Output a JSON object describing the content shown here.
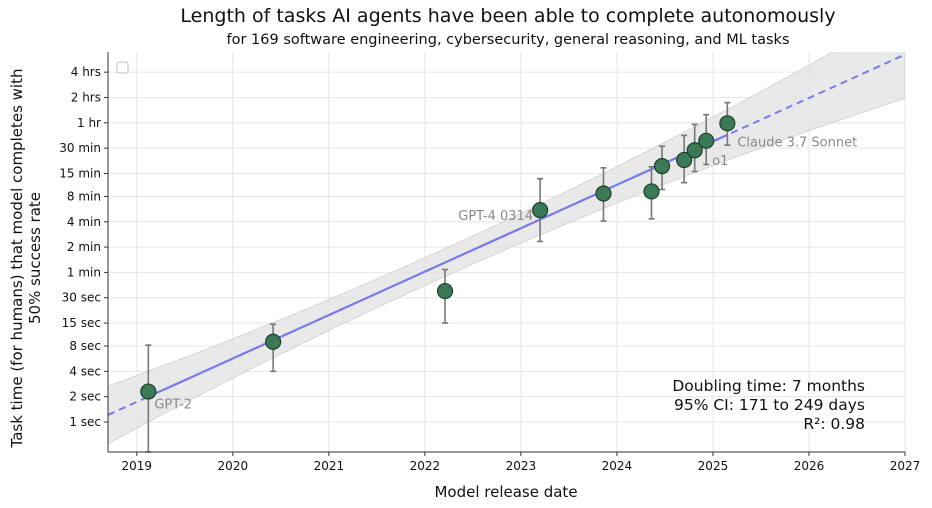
{
  "chart_data": {
    "type": "scatter",
    "title": "Length of tasks AI agents have been able to complete autonomously",
    "subtitle": "for 169 software engineering, cybersecurity, general reasoning, and ML tasks",
    "xlabel": "Model release date",
    "ylabel_line1": "Task time (for humans) that model completes with",
    "ylabel_line2": "50% success rate",
    "y_scale": "log2",
    "y_unit": "seconds",
    "x_unit": "year",
    "xlim": [
      2018.7,
      2027.0
    ],
    "ylim": [
      0.44,
      25000
    ],
    "grid": true,
    "legend": "empty-top-left",
    "x_ticks": [
      {
        "value": 2019,
        "label": "2019"
      },
      {
        "value": 2020,
        "label": "2020"
      },
      {
        "value": 2021,
        "label": "2021"
      },
      {
        "value": 2022,
        "label": "2022"
      },
      {
        "value": 2023,
        "label": "2023"
      },
      {
        "value": 2024,
        "label": "2024"
      },
      {
        "value": 2025,
        "label": "2025"
      },
      {
        "value": 2026,
        "label": "2026"
      },
      {
        "value": 2027,
        "label": "2027"
      }
    ],
    "y_ticks": [
      {
        "value": 1,
        "label": "1 sec"
      },
      {
        "value": 2,
        "label": "2 sec"
      },
      {
        "value": 4,
        "label": "4 sec"
      },
      {
        "value": 8,
        "label": "8 sec"
      },
      {
        "value": 15,
        "label": "15 sec"
      },
      {
        "value": 30,
        "label": "30 sec"
      },
      {
        "value": 60,
        "label": "1 min"
      },
      {
        "value": 120,
        "label": "2 min"
      },
      {
        "value": 240,
        "label": "4 min"
      },
      {
        "value": 480,
        "label": "8 min"
      },
      {
        "value": 900,
        "label": "15 min"
      },
      {
        "value": 1800,
        "label": "30 min"
      },
      {
        "value": 3600,
        "label": "1 hr"
      },
      {
        "value": 7200,
        "label": "2 hrs"
      },
      {
        "value": 14400,
        "label": "4 hrs"
      }
    ],
    "points": [
      {
        "x": 2019.12,
        "y": 2.3,
        "lo": 0.44,
        "hi": 8.2,
        "label": "GPT-2"
      },
      {
        "x": 2020.42,
        "y": 9,
        "lo": 4,
        "hi": 14.5,
        "label": ""
      },
      {
        "x": 2022.21,
        "y": 36,
        "lo": 15,
        "hi": 65,
        "label": ""
      },
      {
        "x": 2023.2,
        "y": 330,
        "lo": 140,
        "hi": 780,
        "label": "GPT-4 0314"
      },
      {
        "x": 2023.86,
        "y": 520,
        "lo": 245,
        "hi": 1050,
        "label": ""
      },
      {
        "x": 2024.36,
        "y": 550,
        "lo": 260,
        "hi": 1080,
        "label": ""
      },
      {
        "x": 2024.47,
        "y": 1100,
        "lo": 580,
        "hi": 1900,
        "label": ""
      },
      {
        "x": 2024.7,
        "y": 1300,
        "lo": 700,
        "hi": 2550,
        "label": ""
      },
      {
        "x": 2024.81,
        "y": 1700,
        "lo": 950,
        "hi": 3450,
        "label": ""
      },
      {
        "x": 2024.93,
        "y": 2200,
        "lo": 1150,
        "hi": 4500,
        "label": "o1"
      },
      {
        "x": 2025.15,
        "y": 3550,
        "lo": 1950,
        "hi": 6250,
        "label": "Claude 3.7 Sonnet"
      }
    ],
    "trend": {
      "type": "exponential",
      "doubling_months": 7,
      "solid_range": [
        2019.12,
        2025.15
      ],
      "dashed_range": [
        2018.7,
        2027.0
      ],
      "anchor": {
        "x": 2019.12,
        "y": 2.0
      },
      "ci_band": true
    },
    "colors": {
      "point_fill": "#3b7a57",
      "point_stroke": "#1f3d2b",
      "trend_line": "#7b7be8",
      "ci_band": "#e2e2e2",
      "error_bar": "#777777",
      "grid": "#e6e6e6"
    },
    "stats_text": [
      "Doubling time: 7 months",
      "95% CI: 171 to 249 days",
      "R²: 0.98"
    ]
  }
}
